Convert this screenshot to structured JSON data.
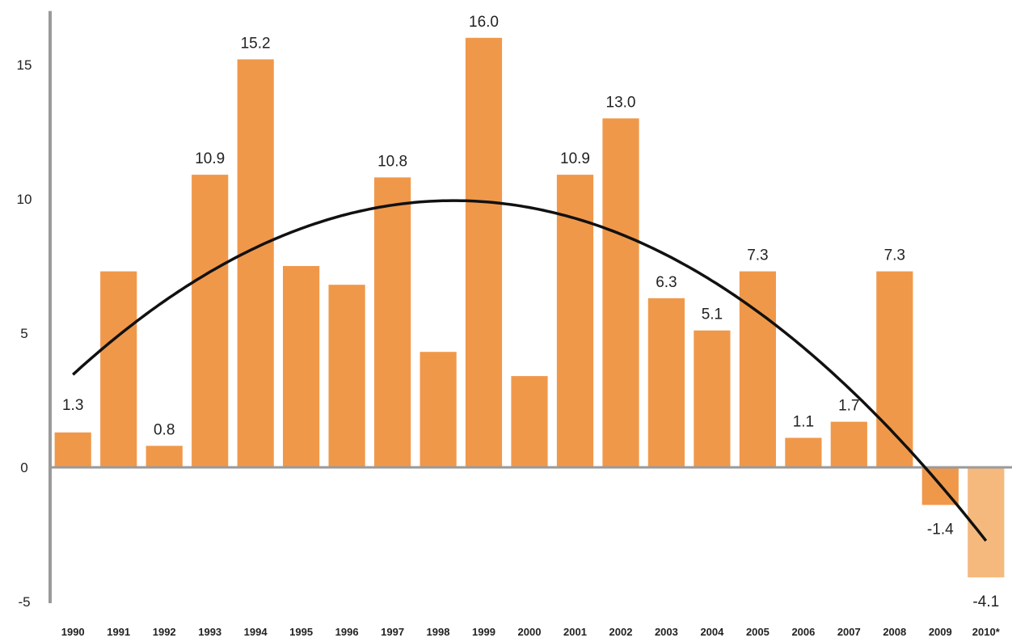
{
  "chart_data": {
    "type": "bar",
    "categories": [
      "1990",
      "1991",
      "1992",
      "1993",
      "1994",
      "1995",
      "1996",
      "1997",
      "1998",
      "1999",
      "2000",
      "2001",
      "2002",
      "2003",
      "2004",
      "2005",
      "2006",
      "2007",
      "2008",
      "2009",
      "2010*"
    ],
    "values": [
      1.3,
      7.3,
      0.8,
      10.9,
      15.2,
      7.5,
      6.8,
      10.8,
      4.3,
      16.0,
      3.4,
      10.9,
      13.0,
      6.3,
      5.1,
      7.3,
      1.1,
      1.7,
      7.3,
      -1.4,
      -4.1
    ],
    "data_labels": [
      "1.3",
      "",
      "0.8",
      "10.9",
      "15.2",
      "",
      "",
      "10.8",
      "",
      "16.0",
      "",
      "10.9",
      "13.0",
      "6.3",
      "5.1",
      "7.3",
      "1.1",
      "1.7",
      "7.3",
      "-1.4",
      "-4.1"
    ],
    "ylim": [
      -5,
      17
    ],
    "yticks": [
      "-5",
      "0",
      "5",
      "10",
      "15"
    ],
    "trendline": {
      "type": "polynomial-2"
    },
    "colors": {
      "bar": "#F0984A",
      "bar_highlight": "#F5B97E",
      "trend": "#111111",
      "axis": "#9a9a9a"
    },
    "title": "",
    "xlabel": "",
    "ylabel": "",
    "grid": false,
    "legend": "none"
  }
}
